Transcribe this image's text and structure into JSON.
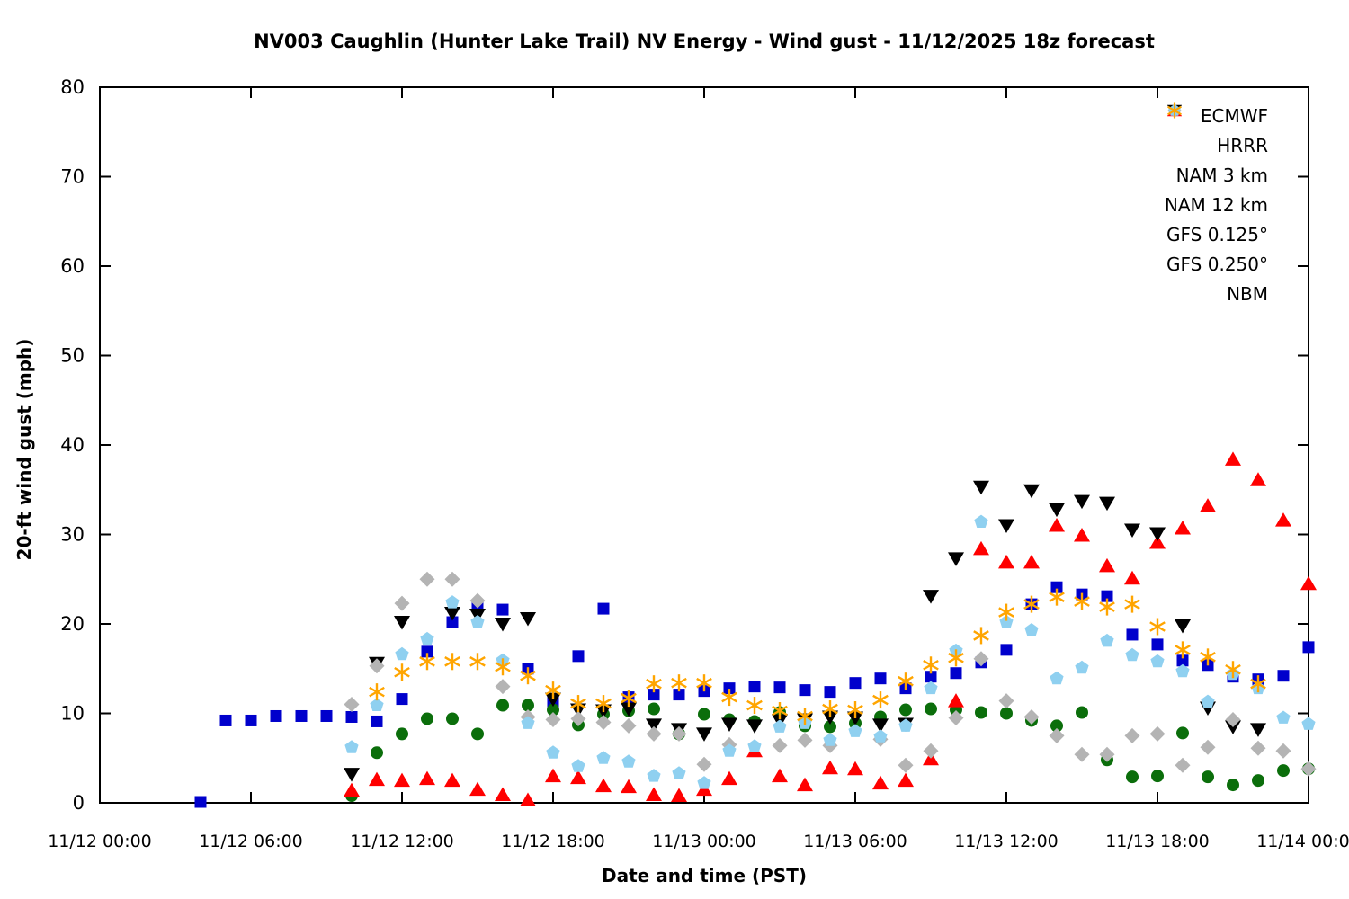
{
  "chart_data": {
    "type": "scatter",
    "title": "NV003 Caughlin (Hunter Lake Trail) NV Energy - Wind gust - 11/12/2025 18z forecast",
    "xlabel": "Date and time (PST)",
    "ylabel": "20-ft wind gust (mph)",
    "ylim": [
      0,
      80
    ],
    "yticks": [
      0,
      10,
      20,
      30,
      40,
      50,
      60,
      70,
      80
    ],
    "x_hours_range": [
      0,
      48
    ],
    "xticks": [
      {
        "hour": 0,
        "label": "11/12 00:00"
      },
      {
        "hour": 6,
        "label": "11/12 06:00"
      },
      {
        "hour": 12,
        "label": "11/12 12:00"
      },
      {
        "hour": 18,
        "label": "11/12 18:00"
      },
      {
        "hour": 24,
        "label": "11/13 00:00"
      },
      {
        "hour": 30,
        "label": "11/13 06:00"
      },
      {
        "hour": 36,
        "label": "11/13 12:00"
      },
      {
        "hour": 42,
        "label": "11/13 18:00"
      },
      {
        "hour": 48,
        "label": "11/14 00:00"
      }
    ],
    "grid": false,
    "legend_position": "top-right",
    "axis_color": "#000000",
    "series": [
      {
        "name": "ECMWF",
        "marker": "square",
        "color": "#0000cc",
        "points": [
          [
            4,
            0.1
          ],
          [
            5,
            9.2
          ],
          [
            6,
            9.2
          ],
          [
            7,
            9.7
          ],
          [
            8,
            9.7
          ],
          [
            9,
            9.7
          ],
          [
            10,
            9.6
          ],
          [
            11,
            9.1
          ],
          [
            12,
            11.6
          ],
          [
            13,
            16.9
          ],
          [
            14,
            20.2
          ],
          [
            15,
            22.1
          ],
          [
            16,
            21.6
          ],
          [
            17,
            15.0
          ],
          [
            18,
            11.2
          ],
          [
            19,
            16.4
          ],
          [
            20,
            21.7
          ],
          [
            21,
            11.8
          ],
          [
            22,
            12.1
          ],
          [
            23,
            12.1
          ],
          [
            24,
            12.5
          ],
          [
            25,
            12.8
          ],
          [
            26,
            13.0
          ],
          [
            27,
            12.9
          ],
          [
            28,
            12.6
          ],
          [
            29,
            12.4
          ],
          [
            30,
            13.4
          ],
          [
            31,
            13.9
          ],
          [
            32,
            12.8
          ],
          [
            33,
            14.1
          ],
          [
            34,
            14.5
          ],
          [
            35,
            15.7
          ],
          [
            36,
            17.1
          ],
          [
            37,
            22.2
          ],
          [
            38,
            24.1
          ],
          [
            39,
            23.3
          ],
          [
            40,
            23.1
          ],
          [
            41,
            18.8
          ],
          [
            42,
            17.7
          ],
          [
            43,
            15.9
          ],
          [
            44,
            15.4
          ],
          [
            45,
            14.1
          ],
          [
            46,
            13.8
          ],
          [
            47,
            14.2
          ],
          [
            48,
            17.4
          ]
        ]
      },
      {
        "name": "HRRR",
        "marker": "circle",
        "color": "#0b6e0b",
        "points": [
          [
            10,
            0.8
          ],
          [
            11,
            5.6
          ],
          [
            12,
            7.7
          ],
          [
            13,
            9.4
          ],
          [
            14,
            9.4
          ],
          [
            15,
            7.7
          ],
          [
            16,
            10.9
          ],
          [
            17,
            10.9
          ],
          [
            18,
            10.4
          ],
          [
            19,
            8.7
          ],
          [
            20,
            9.9
          ],
          [
            21,
            10.3
          ],
          [
            22,
            10.5
          ],
          [
            23,
            7.7
          ],
          [
            24,
            9.9
          ],
          [
            25,
            9.3
          ],
          [
            26,
            9.1
          ],
          [
            27,
            10.1
          ],
          [
            28,
            8.6
          ],
          [
            29,
            8.5
          ],
          [
            30,
            8.9
          ],
          [
            31,
            9.6
          ],
          [
            32,
            10.4
          ],
          [
            33,
            10.5
          ],
          [
            34,
            10.4
          ],
          [
            35,
            10.1
          ],
          [
            36,
            10.0
          ],
          [
            37,
            9.2
          ],
          [
            38,
            8.6
          ],
          [
            39,
            10.1
          ],
          [
            40,
            4.8
          ],
          [
            41,
            2.9
          ],
          [
            42,
            3.0
          ],
          [
            43,
            7.8
          ],
          [
            44,
            2.9
          ],
          [
            45,
            2.0
          ],
          [
            46,
            2.5
          ],
          [
            47,
            3.6
          ],
          [
            48,
            3.8
          ]
        ]
      },
      {
        "name": "NAM 3 km",
        "marker": "triangle-up",
        "color": "#ff0000",
        "points": [
          [
            10,
            1.4
          ],
          [
            11,
            2.6
          ],
          [
            12,
            2.5
          ],
          [
            13,
            2.7
          ],
          [
            14,
            2.5
          ],
          [
            15,
            1.5
          ],
          [
            16,
            0.9
          ],
          [
            17,
            0.3
          ],
          [
            18,
            3.0
          ],
          [
            19,
            2.8
          ],
          [
            20,
            1.9
          ],
          [
            21,
            1.8
          ],
          [
            22,
            0.9
          ],
          [
            23,
            0.8
          ],
          [
            24,
            1.5
          ],
          [
            25,
            2.7
          ],
          [
            26,
            5.8
          ],
          [
            27,
            3.0
          ],
          [
            28,
            2.0
          ],
          [
            29,
            3.9
          ],
          [
            30,
            3.8
          ],
          [
            31,
            2.2
          ],
          [
            32,
            2.5
          ],
          [
            33,
            4.9
          ],
          [
            34,
            11.4
          ],
          [
            35,
            28.4
          ],
          [
            36,
            26.9
          ],
          [
            37,
            26.9
          ],
          [
            38,
            31.0
          ],
          [
            39,
            29.9
          ],
          [
            40,
            26.5
          ],
          [
            41,
            25.1
          ],
          [
            42,
            29.1
          ],
          [
            43,
            30.7
          ],
          [
            44,
            33.2
          ],
          [
            45,
            38.4
          ],
          [
            46,
            36.1
          ],
          [
            47,
            31.6
          ],
          [
            48,
            24.5
          ]
        ]
      },
      {
        "name": "NAM 12 km",
        "marker": "triangle-down",
        "color": "#000000",
        "points": [
          [
            10,
            3.2
          ],
          [
            11,
            15.6
          ],
          [
            12,
            20.2
          ],
          [
            14,
            21.2
          ],
          [
            15,
            21.0
          ],
          [
            16,
            20.0
          ],
          [
            17,
            20.6
          ],
          [
            18,
            11.6
          ],
          [
            19,
            10.4
          ],
          [
            20,
            10.3
          ],
          [
            21,
            10.5
          ],
          [
            22,
            8.7
          ],
          [
            23,
            8.2
          ],
          [
            24,
            7.7
          ],
          [
            25,
            8.8
          ],
          [
            26,
            8.6
          ],
          [
            27,
            9.2
          ],
          [
            28,
            9.3
          ],
          [
            29,
            9.6
          ],
          [
            30,
            9.5
          ],
          [
            31,
            8.7
          ],
          [
            32,
            8.8
          ],
          [
            33,
            23.1
          ],
          [
            34,
            27.3
          ],
          [
            35,
            35.3
          ],
          [
            36,
            31.0
          ],
          [
            37,
            34.9
          ],
          [
            38,
            32.8
          ],
          [
            39,
            33.7
          ],
          [
            40,
            33.5
          ],
          [
            41,
            30.5
          ],
          [
            42,
            30.1
          ],
          [
            43,
            19.8
          ],
          [
            44,
            10.6
          ],
          [
            45,
            8.5
          ],
          [
            46,
            8.2
          ]
        ]
      },
      {
        "name": "GFS 0.125°",
        "marker": "diamond",
        "color": "#b4b4b4",
        "points": [
          [
            10,
            11.0
          ],
          [
            11,
            15.3
          ],
          [
            12,
            22.3
          ],
          [
            13,
            25.0
          ],
          [
            14,
            25.0
          ],
          [
            15,
            22.6
          ],
          [
            16,
            13.0
          ],
          [
            17,
            9.6
          ],
          [
            18,
            9.3
          ],
          [
            19,
            9.4
          ],
          [
            20,
            9.0
          ],
          [
            21,
            8.6
          ],
          [
            22,
            7.7
          ],
          [
            23,
            7.7
          ],
          [
            24,
            4.3
          ],
          [
            25,
            6.5
          ],
          [
            27,
            6.4
          ],
          [
            28,
            7.0
          ],
          [
            29,
            6.4
          ],
          [
            31,
            7.1
          ],
          [
            32,
            4.2
          ],
          [
            33,
            5.8
          ],
          [
            34,
            9.5
          ],
          [
            35,
            16.1
          ],
          [
            36,
            11.4
          ],
          [
            37,
            9.6
          ],
          [
            38,
            7.5
          ],
          [
            39,
            5.4
          ],
          [
            40,
            5.4
          ],
          [
            41,
            7.5
          ],
          [
            42,
            7.7
          ],
          [
            43,
            4.2
          ],
          [
            44,
            6.2
          ],
          [
            45,
            9.3
          ],
          [
            46,
            6.1
          ],
          [
            47,
            5.8
          ],
          [
            48,
            3.8
          ]
        ]
      },
      {
        "name": "GFS 0.250°",
        "marker": "pentagon",
        "color": "#8fd0f0",
        "points": [
          [
            10,
            6.2
          ],
          [
            11,
            10.9
          ],
          [
            12,
            16.6
          ],
          [
            13,
            18.3
          ],
          [
            14,
            22.4
          ],
          [
            15,
            20.2
          ],
          [
            16,
            15.9
          ],
          [
            17,
            8.9
          ],
          [
            18,
            5.6
          ],
          [
            19,
            4.1
          ],
          [
            20,
            5.0
          ],
          [
            21,
            4.6
          ],
          [
            22,
            3.0
          ],
          [
            23,
            3.3
          ],
          [
            24,
            2.2
          ],
          [
            25,
            5.8
          ],
          [
            26,
            6.3
          ],
          [
            27,
            8.5
          ],
          [
            28,
            8.9
          ],
          [
            29,
            7.0
          ],
          [
            30,
            8.0
          ],
          [
            31,
            7.4
          ],
          [
            32,
            8.6
          ],
          [
            33,
            12.8
          ],
          [
            34,
            17.0
          ],
          [
            35,
            31.4
          ],
          [
            36,
            20.2
          ],
          [
            37,
            19.3
          ],
          [
            38,
            13.9
          ],
          [
            39,
            15.1
          ],
          [
            40,
            18.1
          ],
          [
            41,
            16.5
          ],
          [
            42,
            15.8
          ],
          [
            43,
            14.7
          ],
          [
            44,
            11.3
          ],
          [
            45,
            14.4
          ],
          [
            46,
            12.8
          ],
          [
            47,
            9.5
          ],
          [
            48,
            8.8
          ]
        ]
      },
      {
        "name": "NBM",
        "marker": "asterisk",
        "color": "#ffa500",
        "points": [
          [
            11,
            12.4
          ],
          [
            12,
            14.6
          ],
          [
            13,
            15.8
          ],
          [
            14,
            15.8
          ],
          [
            15,
            15.8
          ],
          [
            16,
            15.2
          ],
          [
            17,
            14.2
          ],
          [
            18,
            12.6
          ],
          [
            19,
            11.1
          ],
          [
            20,
            11.1
          ],
          [
            21,
            11.7
          ],
          [
            22,
            13.3
          ],
          [
            23,
            13.4
          ],
          [
            24,
            13.4
          ],
          [
            25,
            11.8
          ],
          [
            26,
            10.9
          ],
          [
            27,
            10.3
          ],
          [
            28,
            9.7
          ],
          [
            29,
            10.5
          ],
          [
            30,
            10.4
          ],
          [
            31,
            11.5
          ],
          [
            32,
            13.6
          ],
          [
            33,
            15.4
          ],
          [
            34,
            16.2
          ],
          [
            35,
            18.7
          ],
          [
            36,
            21.3
          ],
          [
            37,
            22.2
          ],
          [
            38,
            23.0
          ],
          [
            39,
            22.5
          ],
          [
            40,
            21.9
          ],
          [
            41,
            22.2
          ],
          [
            42,
            19.7
          ],
          [
            43,
            17.1
          ],
          [
            44,
            16.3
          ],
          [
            45,
            14.9
          ],
          [
            46,
            13.3
          ]
        ]
      }
    ]
  }
}
